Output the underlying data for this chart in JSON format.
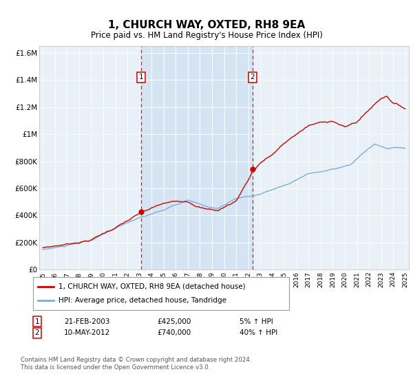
{
  "title": "1, CHURCH WAY, OXTED, RH8 9EA",
  "subtitle": "Price paid vs. HM Land Registry's House Price Index (HPI)",
  "legend_line1": "1, CHURCH WAY, OXTED, RH8 9EA (detached house)",
  "legend_line2": "HPI: Average price, detached house, Tandridge",
  "sale1_label": "1",
  "sale1_date": "21-FEB-2003",
  "sale1_price": "£425,000",
  "sale1_hpi": "5% ↑ HPI",
  "sale1_year": 2003.12,
  "sale1_value": 425000,
  "sale2_label": "2",
  "sale2_date": "10-MAY-2012",
  "sale2_price": "£740,000",
  "sale2_hpi": "40% ↑ HPI",
  "sale2_year": 2012.36,
  "sale2_value": 740000,
  "footer": "Contains HM Land Registry data © Crown copyright and database right 2024.\nThis data is licensed under the Open Government Licence v3.0.",
  "line_color_red": "#cc0000",
  "line_color_blue": "#7bafd4",
  "shade_color": "#cddff0",
  "background_color": "#e8f0f8",
  "ylim": [
    0,
    1650000
  ],
  "xlim_start": 1994.7,
  "xlim_end": 2025.3,
  "yticks": [
    0,
    200000,
    400000,
    600000,
    800000,
    1000000,
    1200000,
    1400000,
    1600000
  ]
}
